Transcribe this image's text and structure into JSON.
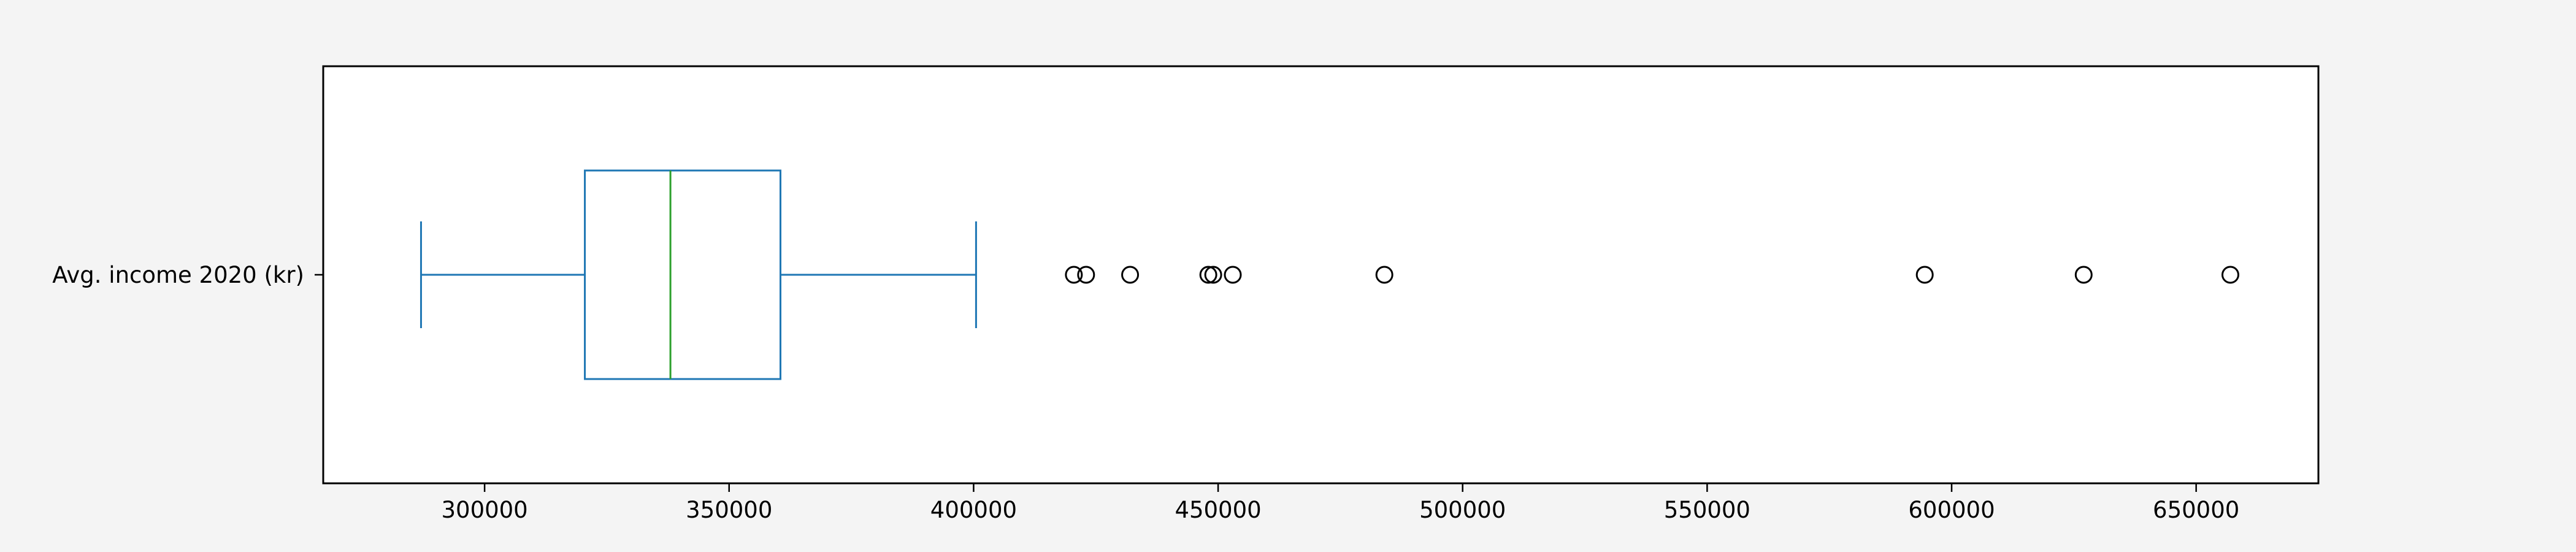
{
  "chart_data": {
    "type": "box",
    "orientation": "horizontal",
    "series": [
      {
        "name": "Avg. income 2020 (kr)",
        "whisker_low": 287000,
        "q1": 320500,
        "median": 338000,
        "q3": 360500,
        "whisker_high": 400500,
        "outliers": [
          420500,
          423000,
          432000,
          448000,
          449000,
          453000,
          484000,
          594500,
          627000,
          657000
        ]
      }
    ],
    "xlim": [
      267000,
      675000
    ],
    "x_ticks": [
      300000,
      350000,
      400000,
      450000,
      500000,
      550000,
      600000,
      650000
    ],
    "title": "",
    "xlabel": "",
    "ylabel": "",
    "grid": false,
    "colors": {
      "box": "#1f77b4",
      "median": "#2ca02c",
      "outlier": "#000000",
      "frame": "#000000"
    }
  }
}
